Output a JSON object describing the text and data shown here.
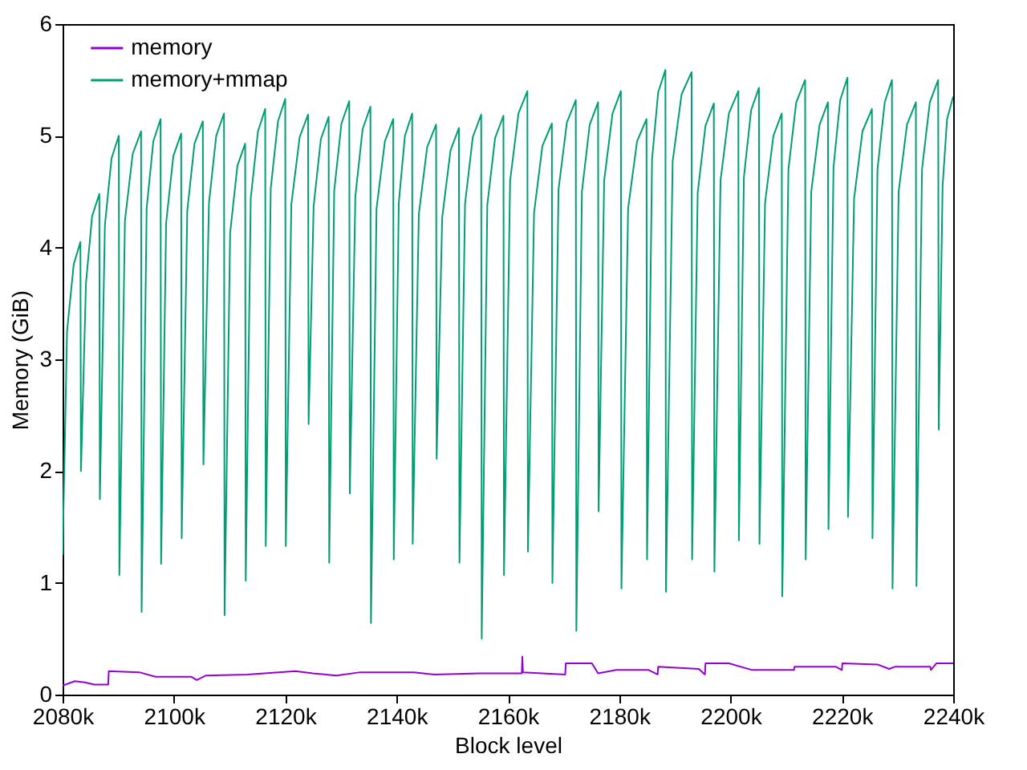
{
  "chart_data": {
    "type": "line",
    "xlabel": "Block level",
    "ylabel": "Memory (GiB)",
    "xlim": [
      2080,
      2240
    ],
    "ylim": [
      0,
      6
    ],
    "xticks": [
      {
        "value": 2080,
        "label": "2080k"
      },
      {
        "value": 2100,
        "label": "2100k"
      },
      {
        "value": 2120,
        "label": "2120k"
      },
      {
        "value": 2140,
        "label": "2140k"
      },
      {
        "value": 2160,
        "label": "2160k"
      },
      {
        "value": 2180,
        "label": "2180k"
      },
      {
        "value": 2200,
        "label": "2200k"
      },
      {
        "value": 2220,
        "label": "2220k"
      },
      {
        "value": 2240,
        "label": "2240k"
      }
    ],
    "yticks": [
      0,
      1,
      2,
      3,
      4,
      5,
      6
    ],
    "legend": "top",
    "series": [
      {
        "name": "memory",
        "color": "#9400d3",
        "x": [
          2080,
          2082.2,
          2084.0,
          2085.7,
          2088.2,
          2088.3,
          2093.8,
          2096.7,
          2103.1,
          2104.1,
          2105.7,
          2113.2,
          2121.8,
          2125.0,
          2129.2,
          2133.5,
          2143.1,
          2146.8,
          2154.8,
          2162.5,
          2162.6,
          2162.7,
          2170.3,
          2170.4,
          2175.1,
          2176.2,
          2179.4,
          2185.3,
          2186.9,
          2187.0,
          2194.3,
          2195.4,
          2195.5,
          2199.7,
          2203.9,
          2211.4,
          2211.5,
          2218.9,
          2220.0,
          2220.1,
          2226.4,
          2228.5,
          2229.6,
          2235.9,
          2236.0,
          2237.0,
          2240
        ],
        "values": [
          0.08,
          0.12,
          0.11,
          0.09,
          0.09,
          0.21,
          0.2,
          0.16,
          0.16,
          0.13,
          0.17,
          0.18,
          0.21,
          0.19,
          0.17,
          0.2,
          0.2,
          0.18,
          0.19,
          0.19,
          0.34,
          0.2,
          0.18,
          0.28,
          0.28,
          0.19,
          0.22,
          0.22,
          0.18,
          0.25,
          0.23,
          0.18,
          0.28,
          0.28,
          0.22,
          0.22,
          0.25,
          0.25,
          0.22,
          0.28,
          0.27,
          0.23,
          0.25,
          0.25,
          0.22,
          0.28,
          0.28
        ]
      },
      {
        "name": "memory+mmap",
        "color": "#009e73",
        "x": [
          2080,
          2080.8,
          2082.0,
          2083.2,
          2083.3,
          2084.2,
          2085.3,
          2086.6,
          2086.7,
          2087.6,
          2088.8,
          2090.1,
          2090.2,
          2091.2,
          2092.6,
          2094.1,
          2094.2,
          2095.1,
          2096.3,
          2097.6,
          2097.7,
          2098.6,
          2099.9,
          2101.3,
          2101.4,
          2102.4,
          2103.7,
          2105.2,
          2105.3,
          2106.3,
          2107.6,
          2109.0,
          2109.1,
          2110.1,
          2111.4,
          2112.8,
          2112.9,
          2113.8,
          2115.1,
          2116.4,
          2116.5,
          2117.4,
          2118.7,
          2120.0,
          2120.1,
          2121.1,
          2122.6,
          2124.1,
          2124.2,
          2125.1,
          2126.4,
          2127.8,
          2127.9,
          2128.8,
          2130.1,
          2131.5,
          2131.6,
          2132.6,
          2133.9,
          2135.3,
          2135.4,
          2136.4,
          2137.9,
          2139.4,
          2139.5,
          2140.4,
          2141.5,
          2142.8,
          2142.9,
          2144.0,
          2145.5,
          2147.1,
          2147.2,
          2148.2,
          2149.7,
          2151.2,
          2151.3,
          2152.3,
          2153.7,
          2155.2,
          2155.3,
          2156.3,
          2157.7,
          2159.2,
          2159.3,
          2160.4,
          2161.9,
          2163.5,
          2163.6,
          2164.7,
          2166.2,
          2167.9,
          2168.0,
          2169.1,
          2170.6,
          2172.2,
          2172.3,
          2173.3,
          2174.7,
          2176.2,
          2176.3,
          2177.3,
          2178.8,
          2180.3,
          2180.4,
          2181.6,
          2183.2,
          2184.9,
          2185.0,
          2185.9,
          2187.0,
          2188.3,
          2188.4,
          2189.6,
          2191.2,
          2193.0,
          2193.1,
          2194.1,
          2195.5,
          2197.0,
          2197.1,
          2198.2,
          2199.7,
          2201.4,
          2201.5,
          2202.4,
          2203.7,
          2205.1,
          2205.2,
          2206.2,
          2207.7,
          2209.2,
          2209.3,
          2210.4,
          2211.8,
          2213.4,
          2213.5,
          2214.5,
          2216.0,
          2217.5,
          2217.6,
          2218.5,
          2219.7,
          2221.0,
          2221.1,
          2222.2,
          2223.7,
          2225.4,
          2225.5,
          2226.4,
          2227.7,
          2229.0,
          2229.1,
          2230.2,
          2231.7,
          2233.3,
          2233.4,
          2234.4,
          2235.8,
          2237.3,
          2237.4,
          2238.1,
          2238.9,
          2240
        ],
        "values": [
          1.25,
          3.25,
          3.85,
          4.05,
          2.0,
          3.68,
          4.28,
          4.48,
          1.75,
          4.2,
          4.8,
          5.0,
          1.07,
          4.24,
          4.84,
          5.04,
          0.74,
          4.35,
          4.95,
          5.15,
          1.17,
          4.22,
          4.82,
          5.02,
          1.4,
          4.33,
          4.93,
          5.13,
          2.06,
          4.4,
          5.0,
          5.2,
          0.71,
          4.13,
          4.73,
          4.93,
          1.02,
          4.44,
          5.04,
          5.24,
          1.33,
          4.53,
          5.13,
          5.33,
          1.33,
          4.39,
          4.99,
          5.19,
          2.42,
          4.37,
          4.97,
          5.17,
          1.18,
          4.51,
          5.11,
          5.31,
          1.8,
          4.46,
          5.06,
          5.26,
          0.64,
          4.35,
          4.95,
          5.15,
          1.21,
          4.4,
          5.0,
          5.2,
          1.35,
          4.3,
          4.9,
          5.1,
          2.11,
          4.27,
          4.87,
          5.07,
          1.18,
          4.39,
          4.99,
          5.19,
          0.5,
          4.38,
          4.98,
          5.18,
          1.07,
          4.6,
          5.2,
          5.4,
          1.28,
          4.31,
          4.91,
          5.11,
          1.0,
          4.52,
          5.12,
          5.32,
          0.57,
          4.5,
          5.1,
          5.3,
          1.64,
          4.6,
          5.2,
          5.4,
          0.95,
          4.35,
          4.95,
          5.15,
          1.21,
          4.79,
          5.39,
          5.59,
          0.92,
          4.77,
          5.37,
          5.57,
          1.21,
          4.49,
          5.09,
          5.29,
          1.1,
          4.6,
          5.2,
          5.4,
          1.38,
          4.63,
          5.23,
          5.43,
          1.35,
          4.4,
          5.0,
          5.2,
          0.88,
          4.7,
          5.3,
          5.5,
          1.21,
          4.5,
          5.1,
          5.3,
          1.48,
          4.72,
          5.32,
          5.52,
          1.59,
          4.44,
          5.04,
          5.24,
          1.4,
          4.7,
          5.3,
          5.5,
          0.95,
          4.5,
          5.1,
          5.3,
          0.97,
          4.7,
          5.3,
          5.5,
          2.37,
          4.55,
          5.15,
          5.35
        ]
      }
    ]
  }
}
